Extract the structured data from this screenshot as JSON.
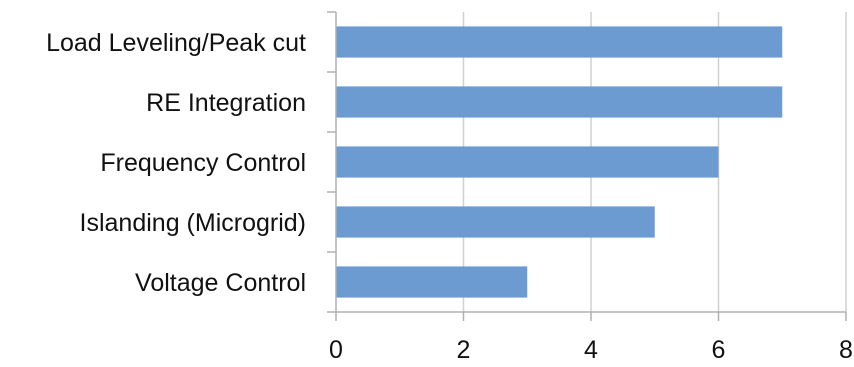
{
  "chart_data": {
    "type": "bar",
    "orientation": "horizontal",
    "categories": [
      "Load Leveling/Peak cut",
      "RE Integration",
      "Frequency Control",
      "Islanding (Microgrid)",
      "Voltage Control"
    ],
    "values": [
      7,
      7,
      6,
      5,
      3
    ],
    "xlim": [
      0,
      8
    ],
    "x_ticks": [
      "0",
      "2",
      "4",
      "6",
      "8"
    ],
    "grid": "vertical",
    "bar_color": "#6b9bd1",
    "grid_color": "#d0d0d0",
    "axis_color": "#b0b0b0",
    "title": "",
    "xlabel": "",
    "ylabel": ""
  }
}
